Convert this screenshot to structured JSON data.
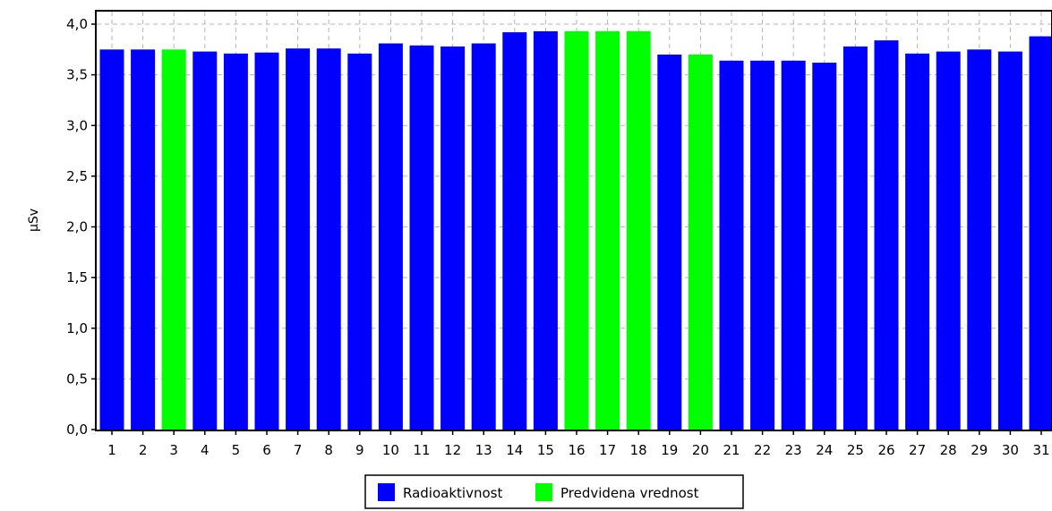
{
  "chart_data": {
    "type": "bar",
    "title": "",
    "xlabel": "",
    "ylabel": "µSv",
    "ylim": [
      0,
      4.0
    ],
    "y_ticks": [
      "0,0",
      "0,5",
      "1,0",
      "1,5",
      "2,0",
      "2,5",
      "3,0",
      "3,5",
      "4,0"
    ],
    "categories": [
      "1",
      "2",
      "3",
      "4",
      "5",
      "6",
      "7",
      "8",
      "9",
      "10",
      "11",
      "12",
      "13",
      "14",
      "15",
      "16",
      "17",
      "18",
      "19",
      "20",
      "21",
      "22",
      "23",
      "24",
      "25",
      "26",
      "27",
      "28",
      "29",
      "30",
      "31"
    ],
    "values": [
      3.75,
      3.75,
      3.75,
      3.73,
      3.71,
      3.72,
      3.76,
      3.76,
      3.71,
      3.81,
      3.79,
      3.78,
      3.81,
      3.92,
      3.93,
      3.93,
      3.93,
      3.93,
      3.7,
      3.7,
      3.64,
      3.64,
      3.64,
      3.62,
      3.78,
      3.84,
      3.71,
      3.73,
      3.75,
      3.73,
      3.88
    ],
    "series_of_point": [
      0,
      0,
      1,
      0,
      0,
      0,
      0,
      0,
      0,
      0,
      0,
      0,
      0,
      0,
      0,
      1,
      1,
      1,
      0,
      1,
      0,
      0,
      0,
      0,
      0,
      0,
      0,
      0,
      0,
      0,
      0
    ],
    "grid": true,
    "legend_position": "bottom-center",
    "series": [
      {
        "name": "Radioaktivnost",
        "color": "#0000ff"
      },
      {
        "name": "Predvidena vrednost",
        "color": "#00ff00"
      }
    ]
  }
}
